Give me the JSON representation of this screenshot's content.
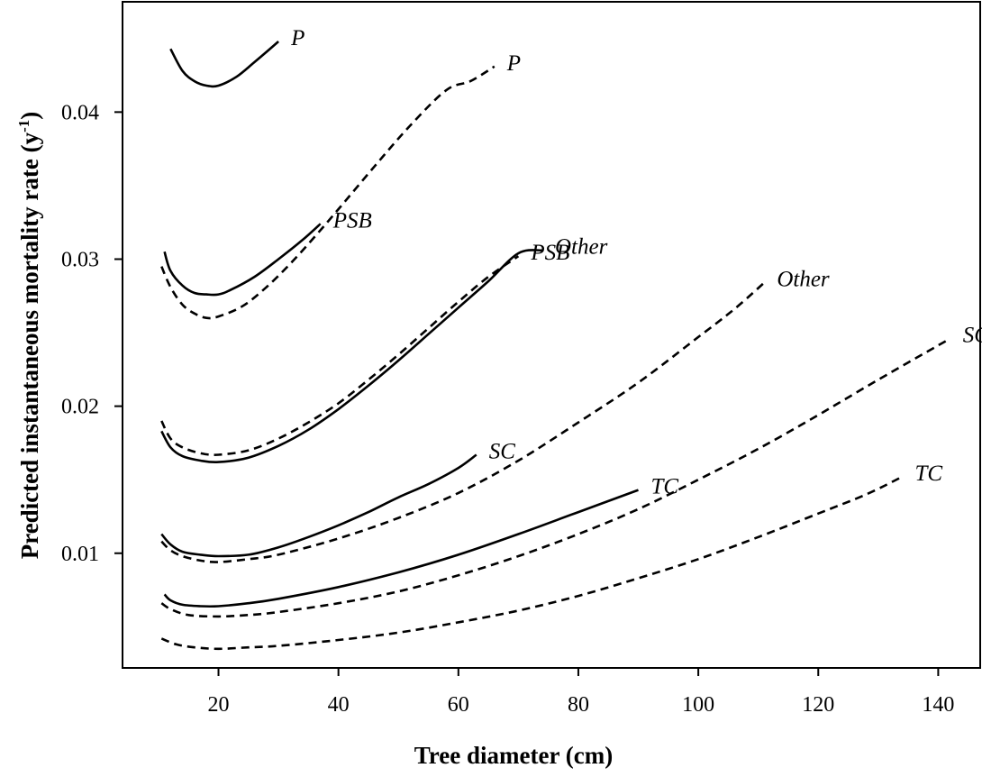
{
  "chart_data": {
    "type": "line",
    "xlabel": "Tree diameter (cm)",
    "ylabel": "Predicted instantaneous mortality rate (y",
    "ylabel_sup": "-1",
    "ylabel_close": ")",
    "xlim": [
      4,
      147
    ],
    "ylim": [
      0.0022,
      0.0475
    ],
    "xticks": [
      20,
      40,
      60,
      80,
      100,
      120,
      140
    ],
    "xtick_labels": [
      "20",
      "40",
      "60",
      "80",
      "100",
      "120",
      "140"
    ],
    "yticks": [
      0.01,
      0.02,
      0.03,
      0.04
    ],
    "ytick_labels": [
      "0.01",
      "0.02",
      "0.03",
      "0.04"
    ],
    "grid": false,
    "series": [
      {
        "name": "P",
        "style": "solid",
        "x": [
          12,
          14,
          16,
          18,
          20,
          23,
          26,
          30
        ],
        "y": [
          0.0443,
          0.0428,
          0.0421,
          0.0418,
          0.0418,
          0.0424,
          0.0434,
          0.0448
        ]
      },
      {
        "name": "P",
        "style": "dashed",
        "x": [
          10.5,
          12,
          14,
          16,
          18,
          20,
          24,
          28,
          32,
          36,
          40,
          46,
          52,
          58,
          62,
          66
        ],
        "y": [
          0.0295,
          0.0281,
          0.0269,
          0.0263,
          0.026,
          0.0261,
          0.0268,
          0.0281,
          0.0297,
          0.0315,
          0.0334,
          0.0363,
          0.0391,
          0.0415,
          0.0421,
          0.0431
        ]
      },
      {
        "name": "PSB",
        "style": "solid",
        "x": [
          11,
          12,
          14,
          16,
          18,
          20,
          22,
          26,
          30,
          34,
          37
        ],
        "y": [
          0.0305,
          0.0292,
          0.0282,
          0.0277,
          0.0276,
          0.0276,
          0.0279,
          0.0288,
          0.03,
          0.0313,
          0.0324
        ]
      },
      {
        "name": "PSB",
        "style": "dashed",
        "x": [
          10.5,
          12,
          14,
          17,
          20,
          25,
          30,
          35,
          40,
          45,
          50,
          55,
          60,
          65,
          70
        ],
        "y": [
          0.019,
          0.0178,
          0.0172,
          0.0168,
          0.0167,
          0.017,
          0.0178,
          0.0189,
          0.0202,
          0.0218,
          0.0235,
          0.0253,
          0.0271,
          0.0288,
          0.0302
        ]
      },
      {
        "name": "Other",
        "style": "solid",
        "x": [
          10.5,
          12,
          14,
          17,
          20,
          25,
          30,
          35,
          40,
          45,
          50,
          55,
          60,
          65,
          70,
          74
        ],
        "y": [
          0.0183,
          0.0172,
          0.0166,
          0.0163,
          0.0162,
          0.0165,
          0.0173,
          0.0184,
          0.0198,
          0.0214,
          0.0231,
          0.0249,
          0.0267,
          0.0285,
          0.0304,
          0.0306
        ]
      },
      {
        "name": "Other",
        "style": "dashed",
        "x": [
          10.5,
          12,
          14,
          17,
          20,
          25,
          30,
          40,
          50,
          60,
          70,
          80,
          90,
          100,
          106,
          111
        ],
        "y": [
          0.0108,
          0.0102,
          0.0098,
          0.0095,
          0.0094,
          0.0096,
          0.0099,
          0.011,
          0.0124,
          0.0141,
          0.0163,
          0.0189,
          0.0216,
          0.0247,
          0.0266,
          0.0284
        ]
      },
      {
        "name": "SC",
        "style": "solid",
        "x": [
          10.5,
          12,
          14,
          17,
          20,
          25,
          30,
          35,
          40,
          45,
          50,
          55,
          60,
          63
        ],
        "y": [
          0.0113,
          0.0106,
          0.0101,
          0.0099,
          0.0098,
          0.0099,
          0.0104,
          0.0111,
          0.0119,
          0.0128,
          0.0138,
          0.0147,
          0.0158,
          0.0167
        ]
      },
      {
        "name": "SC",
        "style": "dashed",
        "x": [
          10.5,
          12,
          15,
          20,
          25,
          30,
          40,
          50,
          60,
          70,
          80,
          90,
          100,
          110,
          120,
          130,
          142
        ],
        "y": [
          0.0066,
          0.0062,
          0.0058,
          0.0057,
          0.0058,
          0.006,
          0.0066,
          0.0074,
          0.0085,
          0.0098,
          0.0113,
          0.013,
          0.015,
          0.0171,
          0.0194,
          0.0218,
          0.0246
        ]
      },
      {
        "name": "TC",
        "style": "solid",
        "x": [
          11,
          12,
          14,
          17,
          20,
          25,
          30,
          40,
          50,
          60,
          70,
          80,
          90
        ],
        "y": [
          0.0072,
          0.0068,
          0.0065,
          0.0064,
          0.0064,
          0.0066,
          0.0069,
          0.0077,
          0.0087,
          0.0099,
          0.0113,
          0.0128,
          0.0143
        ]
      },
      {
        "name": "TC",
        "style": "dashed",
        "x": [
          10.5,
          13,
          16,
          20,
          25,
          30,
          40,
          50,
          60,
          70,
          80,
          90,
          100,
          110,
          120,
          128,
          134
        ],
        "y": [
          0.0042,
          0.0038,
          0.0036,
          0.0035,
          0.0036,
          0.0037,
          0.0041,
          0.0046,
          0.0053,
          0.0061,
          0.0071,
          0.0083,
          0.0096,
          0.0111,
          0.0127,
          0.014,
          0.0152
        ]
      }
    ]
  }
}
